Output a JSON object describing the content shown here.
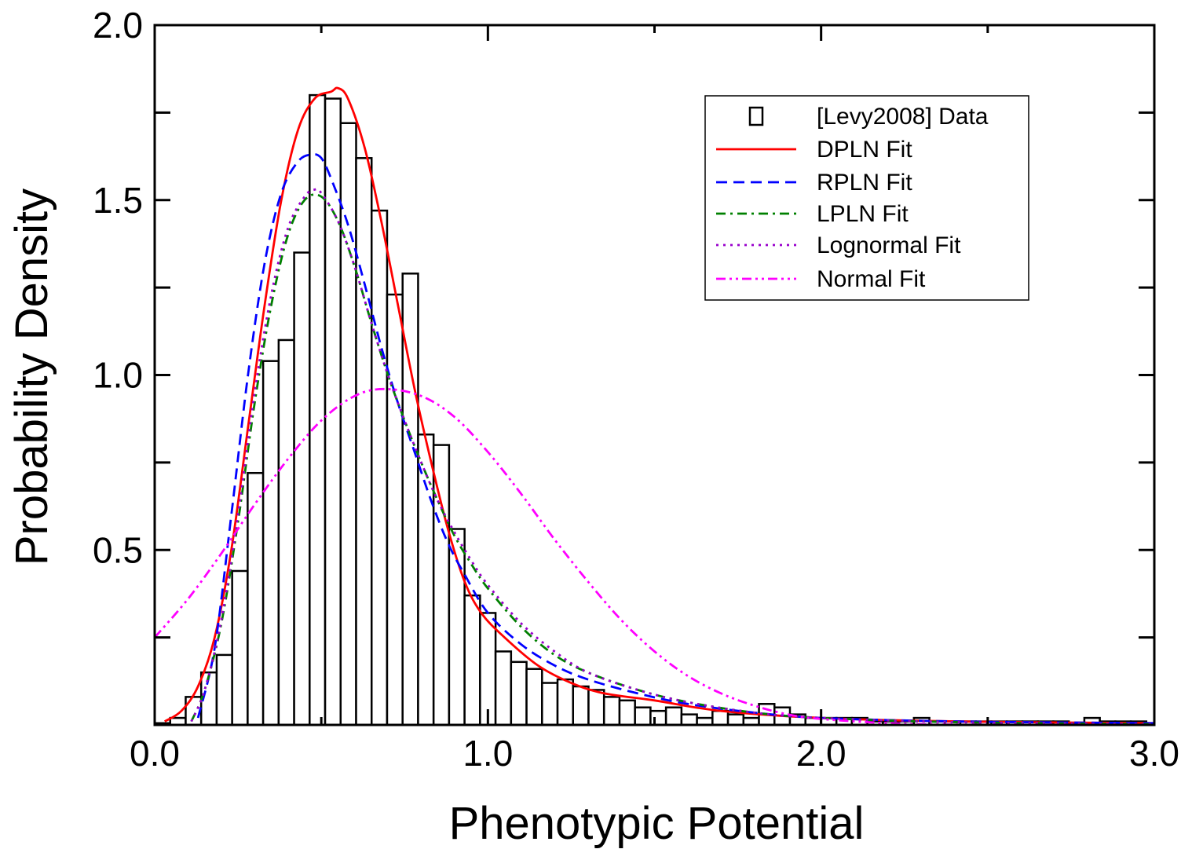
{
  "chart_data": {
    "type": "histogram",
    "xlabel": "Phenotypic Potential",
    "ylabel": "Probability Density",
    "xlim": [
      0,
      3
    ],
    "ylim": [
      0,
      2
    ],
    "x_ticks": [
      {
        "value": 0,
        "label": "0.0"
      },
      {
        "value": 1,
        "label": "1.0"
      },
      {
        "value": 2,
        "label": "2.0"
      },
      {
        "value": 3,
        "label": "3.0"
      }
    ],
    "y_ticks": [
      {
        "value": 0.5,
        "label": "0.5"
      },
      {
        "value": 1,
        "label": "1.0"
      },
      {
        "value": 1.5,
        "label": "1.5"
      },
      {
        "value": 2,
        "label": "2.0"
      }
    ],
    "legend_position": "top-right",
    "histogram": {
      "name": "[Levy2008] Data",
      "bin_start": 0.0,
      "bin_width": 0.0465,
      "values": [
        0.005,
        0.02,
        0.08,
        0.15,
        0.2,
        0.44,
        0.72,
        1.04,
        1.1,
        1.35,
        1.8,
        1.79,
        1.72,
        1.62,
        1.47,
        1.23,
        1.29,
        0.83,
        0.8,
        0.56,
        0.37,
        0.32,
        0.21,
        0.18,
        0.16,
        0.12,
        0.13,
        0.11,
        0.1,
        0.08,
        0.07,
        0.05,
        0.04,
        0.05,
        0.03,
        0.02,
        0.04,
        0.03,
        0.02,
        0.06,
        0.05,
        0.03,
        0.02,
        0.02,
        0.02,
        0.02,
        0.01,
        0.01,
        0.01,
        0.02,
        0.01,
        0.01,
        0.01,
        0.01,
        0.01,
        0.01,
        0.01,
        0.01,
        0.01,
        0.005,
        0.02,
        0.01,
        0.01,
        0.01,
        0.005
      ]
    },
    "series": [
      {
        "name": "DPLN Fit",
        "color": "#ff0000",
        "dash": "solid",
        "x": [
          0.03,
          0.08,
          0.13,
          0.18,
          0.23,
          0.28,
          0.33,
          0.38,
          0.43,
          0.48,
          0.53,
          0.55,
          0.58,
          0.63,
          0.68,
          0.73,
          0.78,
          0.83,
          0.88,
          0.93,
          0.98,
          1.05,
          1.15,
          1.25,
          1.35,
          1.5,
          1.7,
          2.0,
          2.4,
          3.0
        ],
        "y": [
          0.01,
          0.04,
          0.11,
          0.25,
          0.5,
          0.85,
          1.2,
          1.5,
          1.7,
          1.79,
          1.81,
          1.82,
          1.79,
          1.65,
          1.44,
          1.2,
          0.96,
          0.75,
          0.56,
          0.41,
          0.32,
          0.25,
          0.17,
          0.12,
          0.09,
          0.07,
          0.04,
          0.02,
          0.01,
          0.005
        ]
      },
      {
        "name": "RPLN Fit",
        "color": "#0000ff",
        "dash": "dashed",
        "x": [
          0.13,
          0.18,
          0.23,
          0.28,
          0.33,
          0.38,
          0.43,
          0.47,
          0.5,
          0.53,
          0.58,
          0.63,
          0.68,
          0.73,
          0.78,
          0.83,
          0.88,
          0.93,
          1.0,
          1.1,
          1.2,
          1.3,
          1.45,
          1.6,
          1.8,
          2.0,
          2.4,
          3.0
        ],
        "y": [
          0.02,
          0.22,
          0.6,
          1.0,
          1.32,
          1.52,
          1.61,
          1.63,
          1.62,
          1.56,
          1.43,
          1.26,
          1.08,
          0.92,
          0.78,
          0.64,
          0.52,
          0.43,
          0.32,
          0.23,
          0.17,
          0.13,
          0.09,
          0.06,
          0.035,
          0.02,
          0.01,
          0.005
        ]
      },
      {
        "name": "LPLN Fit",
        "color": "#008000",
        "dash": "dashdot",
        "x": [
          0.11,
          0.15,
          0.2,
          0.25,
          0.3,
          0.35,
          0.4,
          0.45,
          0.5,
          0.55,
          0.6,
          0.65,
          0.7,
          0.75,
          0.8,
          0.85,
          0.9,
          0.95,
          1.0,
          1.1,
          1.2,
          1.3,
          1.45,
          1.6,
          1.8,
          2.0,
          2.4,
          3.0
        ],
        "y": [
          0.01,
          0.1,
          0.29,
          0.58,
          0.92,
          1.2,
          1.4,
          1.5,
          1.51,
          1.44,
          1.31,
          1.15,
          1.0,
          0.87,
          0.75,
          0.64,
          0.54,
          0.46,
          0.39,
          0.28,
          0.2,
          0.15,
          0.1,
          0.065,
          0.035,
          0.02,
          0.008,
          0.002
        ]
      },
      {
        "name": "Lognormal Fit",
        "color": "#9900cc",
        "dash": "dotted",
        "x": [
          0.11,
          0.15,
          0.2,
          0.25,
          0.3,
          0.35,
          0.4,
          0.45,
          0.48,
          0.5,
          0.55,
          0.6,
          0.65,
          0.7,
          0.75,
          0.8,
          0.85,
          0.9,
          0.95,
          1.0,
          1.1,
          1.2,
          1.3,
          1.45,
          1.6,
          1.8,
          2.0,
          2.4,
          3.0
        ],
        "y": [
          0.01,
          0.1,
          0.3,
          0.6,
          0.95,
          1.23,
          1.42,
          1.51,
          1.53,
          1.52,
          1.44,
          1.31,
          1.15,
          1.0,
          0.87,
          0.75,
          0.64,
          0.55,
          0.47,
          0.4,
          0.29,
          0.21,
          0.15,
          0.1,
          0.065,
          0.035,
          0.02,
          0.008,
          0.002
        ]
      },
      {
        "name": "Normal Fit",
        "color": "#ff00ff",
        "dash": "dashdotdot",
        "x": [
          0.0,
          0.1,
          0.2,
          0.3,
          0.4,
          0.5,
          0.6,
          0.69,
          0.8,
          0.9,
          1.0,
          1.1,
          1.2,
          1.3,
          1.4,
          1.5,
          1.6,
          1.7,
          1.8,
          1.9,
          2.0,
          2.2,
          2.4,
          3.0
        ],
        "y": [
          0.25,
          0.36,
          0.49,
          0.63,
          0.76,
          0.87,
          0.94,
          0.96,
          0.94,
          0.88,
          0.78,
          0.66,
          0.53,
          0.41,
          0.3,
          0.21,
          0.14,
          0.09,
          0.055,
          0.03,
          0.017,
          0.005,
          0.001,
          0.0
        ]
      }
    ]
  }
}
